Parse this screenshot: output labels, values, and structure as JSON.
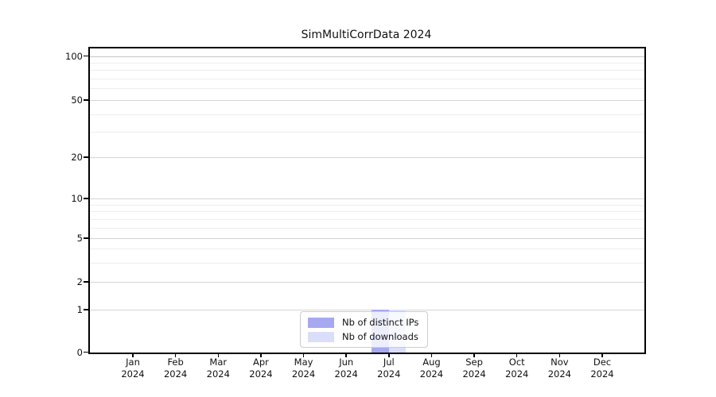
{
  "chart_data": {
    "type": "bar",
    "title": "SimMultiCorrData 2024",
    "x_axis": {
      "categories": [
        {
          "month": "Jan",
          "year": "2024"
        },
        {
          "month": "Feb",
          "year": "2024"
        },
        {
          "month": "Mar",
          "year": "2024"
        },
        {
          "month": "Apr",
          "year": "2024"
        },
        {
          "month": "May",
          "year": "2024"
        },
        {
          "month": "Jun",
          "year": "2024"
        },
        {
          "month": "Jul",
          "year": "2024"
        },
        {
          "month": "Aug",
          "year": "2024"
        },
        {
          "month": "Sep",
          "year": "2024"
        },
        {
          "month": "Oct",
          "year": "2024"
        },
        {
          "month": "Nov",
          "year": "2024"
        },
        {
          "month": "Dec",
          "year": "2024"
        }
      ]
    },
    "y_axis": {
      "scale": "pseudo-log",
      "ticks": [
        0,
        1,
        2,
        5,
        10,
        20,
        50,
        100
      ],
      "minor_gridlines": [
        3,
        4,
        6,
        7,
        8,
        9,
        30,
        40,
        60,
        70,
        80,
        90
      ],
      "ylim": [
        0,
        115
      ]
    },
    "series": [
      {
        "name": "Nb of distinct IPs",
        "color": "#a6a9f0",
        "values": [
          0,
          0,
          0,
          0,
          0,
          0,
          1,
          0,
          0,
          0,
          0,
          0
        ]
      },
      {
        "name": "Nb of downloads",
        "color": "#dbdefa",
        "values": [
          0,
          0,
          0,
          0,
          0,
          0,
          1,
          0,
          0,
          0,
          0,
          0
        ]
      }
    ],
    "legend": {
      "position": "bottom-center-inside"
    },
    "grid": "horizontal",
    "colors": {
      "spine": "#000000",
      "grid_major": "#d4d4d4",
      "grid_top": "#c6c6c6",
      "grid_minor": "#eeeeee",
      "background": "#ffffff"
    }
  }
}
